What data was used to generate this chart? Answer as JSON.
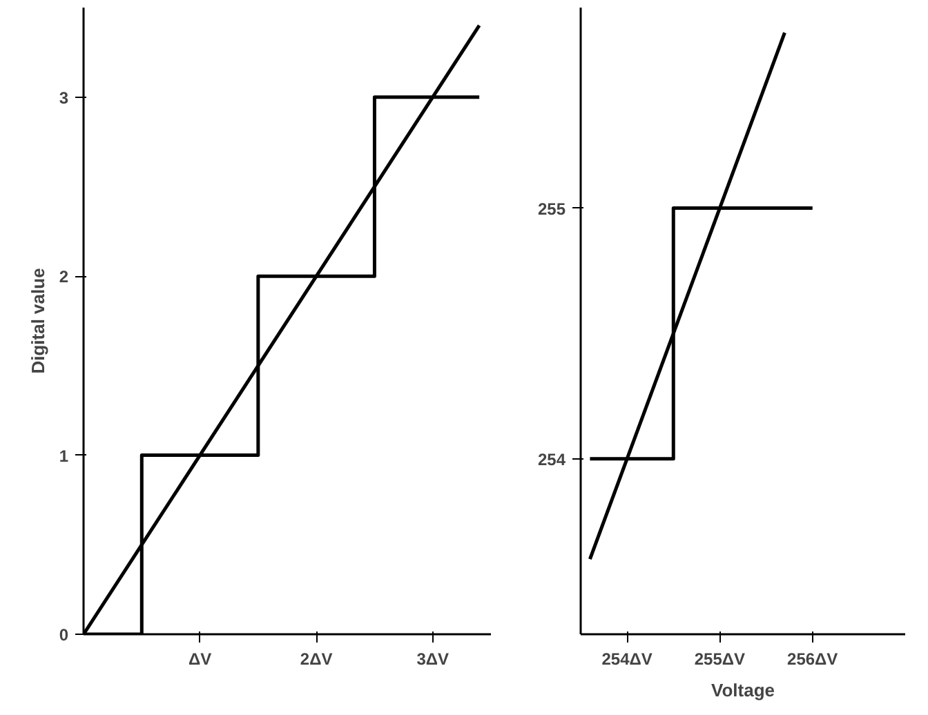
{
  "chart_data": [
    {
      "type": "line",
      "ylabel": "Digital value",
      "xlim": [
        0,
        3.5
      ],
      "ylim": [
        0,
        3.5
      ],
      "xticks": [
        {
          "value": 1,
          "label": "ΔV"
        },
        {
          "value": 2,
          "label": "2ΔV"
        },
        {
          "value": 3,
          "label": "3ΔV"
        }
      ],
      "yticks": [
        0,
        1,
        2,
        3
      ],
      "grid": false,
      "x": [
        0,
        0.5,
        1.5,
        2.5,
        3.4
      ],
      "series": [
        {
          "type": "step",
          "color": "#000000",
          "values": [
            0,
            1,
            2,
            3,
            3
          ]
        },
        {
          "color": "#000000",
          "x": [
            0,
            3.4
          ],
          "values": [
            0,
            3.4
          ]
        }
      ]
    },
    {
      "type": "line",
      "xlabel": "Voltage",
      "xlim": [
        253.5,
        257
      ],
      "ylim": [
        253.3,
        255.8
      ],
      "xticks": [
        {
          "value": 254,
          "label": "254ΔV"
        },
        {
          "value": 255,
          "label": "255ΔV"
        },
        {
          "value": 256,
          "label": "256ΔV"
        }
      ],
      "yticks": [
        254,
        255
      ],
      "grid": false,
      "x": [
        253.6,
        254.5,
        256
      ],
      "series": [
        {
          "type": "step",
          "color": "#000000",
          "values": [
            254,
            255,
            255
          ]
        },
        {
          "color": "#000000",
          "x": [
            253.6,
            255.7
          ],
          "values": [
            253.6,
            255.7
          ]
        }
      ]
    }
  ]
}
